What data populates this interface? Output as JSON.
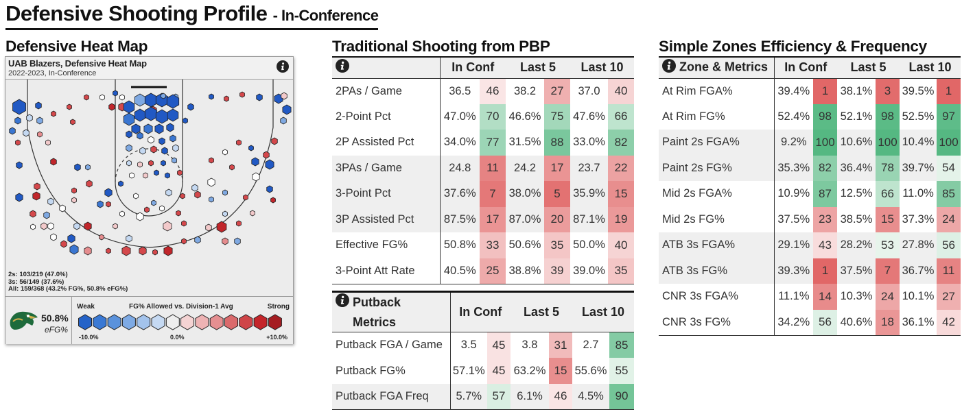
{
  "page": {
    "title": "Defensive Shooting Profile",
    "subtitle": "- In-Conference"
  },
  "heatmap": {
    "section_title": "Defensive Heat Map",
    "team_title": "UAB Blazers, Defensive Heat Map",
    "season": "2022-2023, In-Conference",
    "stats": [
      "2s: 103/219 (47.0%)",
      "3s: 56/149 (37.6%)",
      "All: 159/368 (43.2% FG%, 50.8% eFG%)"
    ],
    "efg_value": "50.8%",
    "efg_label": "eFG%",
    "legend": {
      "weak": "Weak",
      "title": "FG% Allowed vs. Division-1 Avg",
      "strong": "Strong",
      "tick_left": "-10.0%",
      "tick_mid": "0.0%",
      "tick_right": "+10.0%",
      "colors": [
        "#2563c8",
        "#3a79d4",
        "#5a92dc",
        "#7eaae4",
        "#a3c3ec",
        "#c5d9f2",
        "#eeeeee",
        "#f4d3d3",
        "#eeb3b4",
        "#e58f91",
        "#da6a6c",
        "#cf4548",
        "#c4252a",
        "#a51d22"
      ]
    },
    "info_icon": "info-icon"
  },
  "traditional": {
    "section_title": "Traditional Shooting from PBP",
    "headers": [
      "In Conf",
      "Last 5",
      "Last 10"
    ],
    "rows": [
      {
        "label": "2PAs / Game",
        "v1": "36.5",
        "p1": "46",
        "v2": "38.2",
        "p2": "27",
        "v3": "37.0",
        "p3": "40"
      },
      {
        "label": "2-Point Pct",
        "v1": "47.0%",
        "p1": "70",
        "v2": "46.6%",
        "p2": "75",
        "v3": "47.6%",
        "p3": "66"
      },
      {
        "label": "2P Assisted Pct",
        "v1": "34.0%",
        "p1": "77",
        "v2": "31.5%",
        "p2": "88",
        "v3": "33.0%",
        "p3": "82"
      },
      {
        "label": "3PAs / Game",
        "v1": "24.8",
        "p1": "11",
        "v2": "24.2",
        "p2": "17",
        "v3": "23.7",
        "p3": "22"
      },
      {
        "label": "3-Point Pct",
        "v1": "37.6%",
        "p1": "7",
        "v2": "38.0%",
        "p2": "5",
        "v3": "35.9%",
        "p3": "15"
      },
      {
        "label": "3P Assisted Pct",
        "v1": "87.5%",
        "p1": "17",
        "v2": "87.0%",
        "p2": "20",
        "v3": "87.1%",
        "p3": "19"
      },
      {
        "label": "Effective FG%",
        "v1": "50.8%",
        "p1": "33",
        "v2": "50.6%",
        "p2": "35",
        "v3": "50.0%",
        "p3": "40"
      },
      {
        "label": "3-Point Att Rate",
        "v1": "40.5%",
        "p1": "25",
        "v2": "38.8%",
        "p2": "39",
        "v3": "39.0%",
        "p3": "35"
      }
    ]
  },
  "putback": {
    "header_line1": "Putback",
    "header_line2": "Metrics",
    "headers": [
      "In Conf",
      "Last 5",
      "Last 10"
    ],
    "rows": [
      {
        "label": "Putback FGA / Game",
        "v1": "3.5",
        "p1": "45",
        "v2": "3.8",
        "p2": "31",
        "v3": "2.7",
        "p3": "85"
      },
      {
        "label": "Putback FG%",
        "v1": "57.1%",
        "p1": "45",
        "v2": "63.2%",
        "p2": "15",
        "v3": "55.6%",
        "p3": "55"
      },
      {
        "label": "Putback FGA Freq",
        "v1": "5.7%",
        "p1": "57",
        "v2": "6.1%",
        "p2": "46",
        "v3": "4.5%",
        "p3": "90"
      }
    ]
  },
  "zones": {
    "section_title": "Simple Zones Efficiency & Frequency",
    "label_header": "Zone & Metrics",
    "headers": [
      "In Conf",
      "Last 5",
      "Last 10"
    ],
    "rows": [
      {
        "label": "At Rim FGA%",
        "v1": "39.4%",
        "p1": "1",
        "v2": "38.1%",
        "p2": "3",
        "v3": "39.5%",
        "p3": "1"
      },
      {
        "label": "At Rim FG%",
        "v1": "52.4%",
        "p1": "98",
        "v2": "52.1%",
        "p2": "98",
        "v3": "52.5%",
        "p3": "97"
      },
      {
        "label": "Paint 2s FGA%",
        "v1": "9.2%",
        "p1": "100",
        "v2": "10.6%",
        "p2": "100",
        "v3": "10.4%",
        "p3": "100"
      },
      {
        "label": "Paint 2s FG%",
        "v1": "35.3%",
        "p1": "82",
        "v2": "36.4%",
        "p2": "78",
        "v3": "39.7%",
        "p3": "54"
      },
      {
        "label": "Mid 2s FGA%",
        "v1": "10.9%",
        "p1": "87",
        "v2": "12.5%",
        "p2": "66",
        "v3": "11.0%",
        "p3": "85"
      },
      {
        "label": "Mid 2s FG%",
        "v1": "37.5%",
        "p1": "23",
        "v2": "38.5%",
        "p2": "15",
        "v3": "37.3%",
        "p3": "24"
      },
      {
        "label": "ATB 3s FGA%",
        "v1": "29.1%",
        "p1": "43",
        "v2": "28.2%",
        "p2": "53",
        "v3": "27.8%",
        "p3": "56"
      },
      {
        "label": "ATB 3s FG%",
        "v1": "39.3%",
        "p1": "1",
        "v2": "37.5%",
        "p2": "7",
        "v3": "36.7%",
        "p3": "11"
      },
      {
        "label": "CNR 3s FGA%",
        "v1": "11.1%",
        "p1": "14",
        "v2": "10.3%",
        "p2": "24",
        "v3": "10.1%",
        "p3": "27"
      },
      {
        "label": "CNR 3s FG%",
        "v1": "34.2%",
        "p1": "56",
        "v2": "40.6%",
        "p2": "18",
        "v3": "36.1%",
        "p3": "42"
      }
    ]
  }
}
